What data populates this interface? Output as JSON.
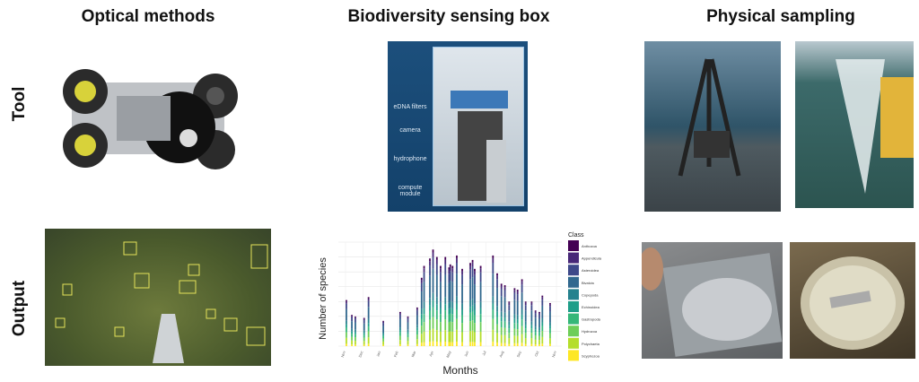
{
  "columns": [
    "Optical methods",
    "Biodiversity sensing box",
    "Physical sampling"
  ],
  "rows": [
    "Tool",
    "Output"
  ],
  "sensing_box_labels": [
    "eDNA filters",
    "camera",
    "hydrophone",
    "compute module"
  ],
  "chart_data": {
    "type": "bar",
    "stacked": true,
    "xlabel": "Months",
    "ylabel": "Number of species",
    "x_tick_labels": [
      "Nov",
      "Dec",
      "Jan",
      "Feb",
      "Mar",
      "Apr",
      "May",
      "Jun",
      "Jul",
      "Aug",
      "Sep",
      "Oct",
      "Nov"
    ],
    "xlim": [
      0,
      12
    ],
    "ylim": [
      0,
      7
    ],
    "grid": true,
    "legend_title": "Class",
    "legend_position": "right",
    "classes": [
      "Anthozoa",
      "Appendicularia",
      "Asteroidea",
      "Bivalvia",
      "Copepoda",
      "Echinoidea",
      "Gastropoda",
      "Hydrozoa",
      "Polychaeta",
      "Scyphozoa"
    ],
    "class_colors": [
      "#440154",
      "#482878",
      "#3e4989",
      "#31688e",
      "#26828e",
      "#1f9e89",
      "#35b779",
      "#6ece58",
      "#b5de2b",
      "#fde725"
    ],
    "approx_class_share": [
      0.03,
      0.05,
      0.12,
      0.25,
      0.08,
      0.07,
      0.1,
      0.12,
      0.13,
      0.05
    ],
    "x": [
      0.05,
      0.36,
      0.56,
      1.06,
      1.31,
      2.15,
      3.11,
      3.55,
      4.08,
      4.33,
      4.47,
      4.8,
      4.98,
      5.2,
      5.41,
      5.68,
      5.89,
      5.96,
      6.09,
      6.33,
      6.64,
      7.1,
      7.23,
      7.35,
      7.69,
      8.39,
      8.63,
      8.87,
      9.07,
      9.31,
      9.62,
      9.79,
      10.04,
      10.25,
      10.59,
      10.81,
      11.03,
      11.2,
      11.64
    ],
    "totals": [
      3.1,
      2.1,
      2.0,
      1.9,
      3.3,
      1.7,
      2.3,
      2.0,
      2.6,
      4.6,
      5.4,
      5.9,
      6.5,
      6.0,
      5.4,
      6.0,
      5.3,
      5.5,
      5.4,
      6.1,
      5.2,
      5.6,
      5.8,
      5.2,
      5.4,
      6.1,
      4.9,
      4.2,
      4.1,
      3.0,
      3.9,
      3.8,
      4.5,
      3.0,
      3.0,
      2.4,
      2.3,
      3.4,
      2.9
    ]
  }
}
